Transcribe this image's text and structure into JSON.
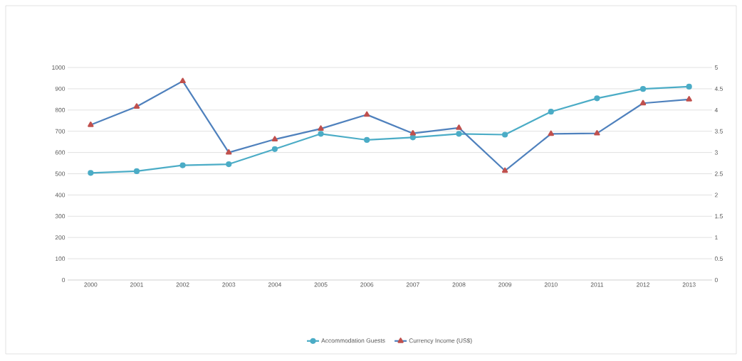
{
  "chart_data": {
    "type": "line",
    "categories": [
      "2000",
      "2001",
      "2002",
      "2003",
      "2004",
      "2005",
      "2006",
      "2007",
      "2008",
      "2009",
      "2010",
      "2011",
      "2012",
      "2013"
    ],
    "series": [
      {
        "name": "Accommodation Guests",
        "color": "#4bacc6",
        "marker": "circle",
        "values": [
          504,
          512,
          540,
          545,
          616,
          688,
          659,
          671,
          688,
          684,
          792,
          855,
          899,
          910
        ]
      },
      {
        "name": "Currency Income (US$)",
        "color": "#4f81bd",
        "marker": "triangle",
        "axis": "y2",
        "values": [
          3.65,
          4.08,
          4.68,
          3.0,
          3.31,
          3.56,
          3.89,
          3.45,
          3.58,
          2.57,
          3.44,
          3.45,
          4.16,
          4.25
        ]
      }
    ],
    "ylim": [
      0,
      1000
    ],
    "yticks": [
      0,
      100,
      200,
      300,
      400,
      500,
      600,
      700,
      800,
      900,
      1000
    ],
    "y2lim": [
      0,
      5
    ],
    "y2ticks": [
      0,
      0.5,
      1,
      1.5,
      2,
      2.5,
      3,
      3.5,
      4,
      4.5,
      5
    ],
    "grid": "y",
    "legend": "bottom",
    "line_style": "solid"
  }
}
